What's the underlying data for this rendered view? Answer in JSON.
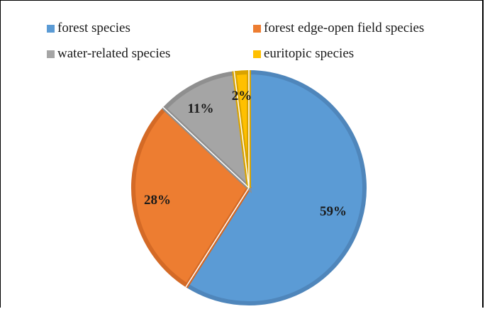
{
  "chart_data": {
    "type": "pie",
    "categories": [
      "forest species",
      "forest edge-open field species",
      "water-related species",
      "euritopic species"
    ],
    "values": [
      59,
      28,
      11,
      2
    ],
    "value_labels": [
      "59%",
      "28%",
      "11%",
      "2%"
    ],
    "colors": [
      "#5b9bd5",
      "#ed7d31",
      "#a5a5a5",
      "#ffc000"
    ],
    "edge_colors": [
      "#4f86bb",
      "#d46a26",
      "#8f8f8f",
      "#d9a300"
    ],
    "legend_position": "top"
  }
}
